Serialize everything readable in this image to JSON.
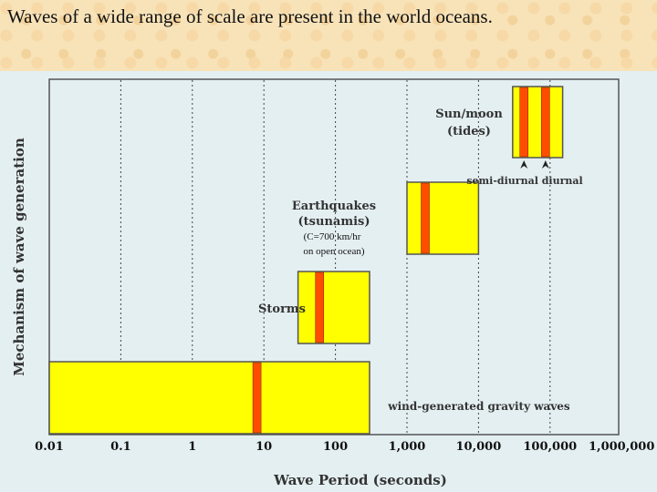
{
  "slide": {
    "title": "Waves of a wide range of scale are present in the world oceans."
  },
  "chart_data": {
    "type": "bar",
    "orientation": "horizontal-range",
    "xscale": "log",
    "xlim": [
      0.01,
      1000000
    ],
    "xlabel": "Wave Period (seconds)",
    "ylabel": "Mechanism of wave generation",
    "xticks": [
      "0.01",
      "0.1",
      "1",
      "10",
      "100",
      "1,000",
      "10,000",
      "100,000",
      "1,000,000"
    ],
    "grid": "vertical dashed",
    "colors": {
      "box": "#ffff00",
      "peak": "#ff4d00",
      "frame": "#555555"
    },
    "series": [
      {
        "name": "wind-generated gravity waves",
        "range": [
          0.01,
          300
        ],
        "peaks": [
          8
        ]
      },
      {
        "name": "Storms",
        "range": [
          30,
          300
        ],
        "peaks": [
          60
        ]
      },
      {
        "name": "Earthquakes (tsunamis)",
        "range": [
          1000,
          10000
        ],
        "peaks": [
          1800
        ]
      },
      {
        "name": "Sun/moon (tides)",
        "range": [
          30000,
          150000
        ],
        "peaks": [
          43200,
          86400
        ]
      }
    ],
    "annotations": {
      "storms": "Storms",
      "earthquakes": [
        "Earthquakes",
        "(tsunamis)"
      ],
      "tsunami_speed": [
        "(C=700 km/hr",
        "on open ocean)"
      ],
      "tides": [
        "Sun/moon",
        "(tides)"
      ],
      "tidal_arrows": "semi-diurnal diurnal",
      "wind": "wind-generated gravity waves"
    }
  }
}
